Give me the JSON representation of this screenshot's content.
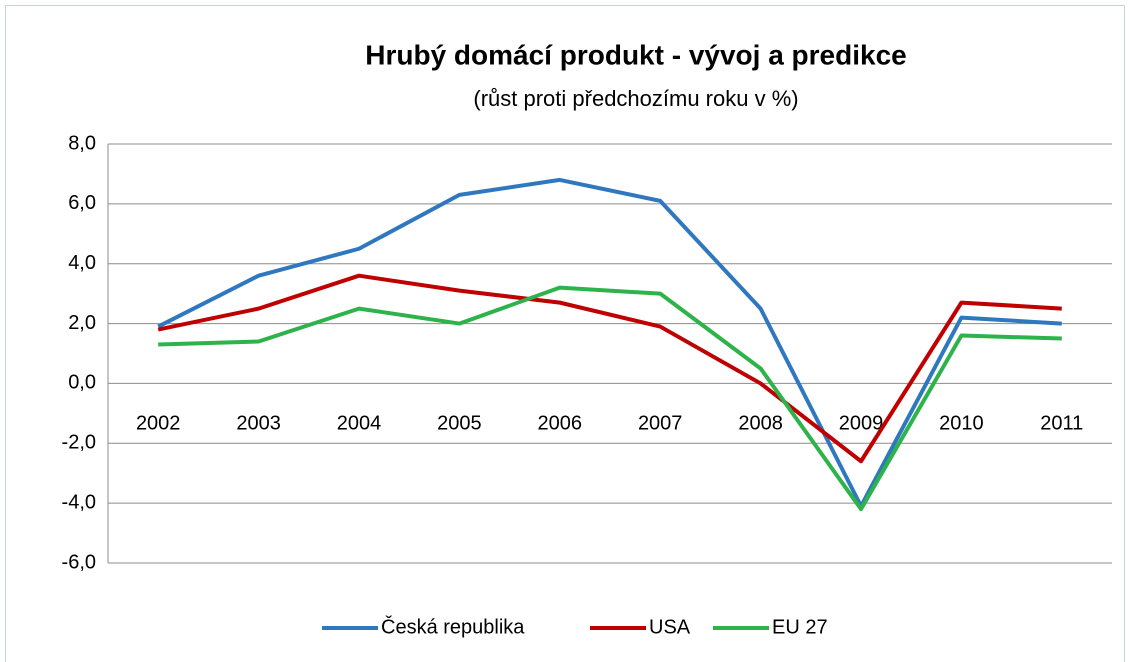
{
  "chart_data": {
    "type": "line",
    "title": "Hrubý domácí produkt - vývoj a predikce",
    "subtitle": "(růst proti předchozímu roku v %)",
    "categories": [
      "2002",
      "2003",
      "2004",
      "2005",
      "2006",
      "2007",
      "2008",
      "2009",
      "2010",
      "2011"
    ],
    "series": [
      {
        "name": "Česká republika",
        "color": "#2f78c0",
        "values": [
          1.9,
          3.6,
          4.5,
          6.3,
          6.8,
          6.1,
          2.5,
          -4.1,
          2.2,
          2.0
        ]
      },
      {
        "name": "USA",
        "color": "#c00000",
        "values": [
          1.8,
          2.5,
          3.6,
          3.1,
          2.7,
          1.9,
          0.0,
          -2.6,
          2.7,
          2.5
        ]
      },
      {
        "name": "EU 27",
        "color": "#2db34a",
        "values": [
          1.3,
          1.4,
          2.5,
          2.0,
          3.2,
          3.0,
          0.5,
          -4.2,
          1.6,
          1.5
        ]
      }
    ],
    "ylim": [
      -6,
      8
    ],
    "yticks": [
      {
        "value": -6,
        "label": "-6,0"
      },
      {
        "value": -4,
        "label": "-4,0"
      },
      {
        "value": -2,
        "label": "-2,0"
      },
      {
        "value": 0,
        "label": "0,0"
      },
      {
        "value": 2,
        "label": "2,0"
      },
      {
        "value": 4,
        "label": "4,0"
      },
      {
        "value": 6,
        "label": "6,0"
      },
      {
        "value": 8,
        "label": "8,0"
      }
    ],
    "grid": true,
    "legend": "bottom"
  }
}
